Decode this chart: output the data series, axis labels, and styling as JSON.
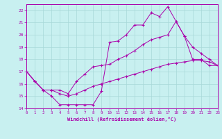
{
  "xlabel": "Windchill (Refroidissement éolien,°C)",
  "bg_color": "#c8f0f0",
  "grid_color": "#a8d8d8",
  "line_color": "#aa00aa",
  "xlim": [
    0,
    23
  ],
  "ylim": [
    14,
    22.5
  ],
  "xticks": [
    0,
    1,
    2,
    3,
    4,
    5,
    6,
    7,
    8,
    9,
    10,
    11,
    12,
    13,
    14,
    15,
    16,
    17,
    18,
    19,
    20,
    21,
    22,
    23
  ],
  "yticks": [
    14,
    15,
    16,
    17,
    18,
    19,
    20,
    21,
    22
  ],
  "line1_x": [
    0,
    1,
    2,
    3,
    4,
    5,
    6,
    7,
    8,
    9,
    10,
    11,
    12,
    13,
    14,
    15,
    16,
    17,
    18,
    19,
    20,
    21,
    22,
    23
  ],
  "line1_y": [
    17.0,
    16.2,
    15.5,
    15.0,
    14.3,
    14.3,
    14.3,
    14.3,
    14.3,
    15.4,
    19.4,
    19.5,
    20.0,
    20.8,
    20.8,
    21.8,
    21.5,
    22.3,
    21.1,
    19.9,
    18.0,
    18.0,
    17.5,
    17.5
  ],
  "line2_x": [
    0,
    1,
    2,
    3,
    4,
    5,
    6,
    7,
    8,
    9,
    10,
    11,
    12,
    13,
    14,
    15,
    16,
    17,
    18,
    19,
    20,
    21,
    22,
    23
  ],
  "line2_y": [
    17.0,
    16.2,
    15.5,
    15.5,
    15.5,
    15.2,
    16.2,
    16.8,
    17.4,
    17.5,
    17.6,
    18.0,
    18.3,
    18.7,
    19.2,
    19.6,
    19.8,
    20.0,
    21.1,
    19.9,
    19.0,
    18.5,
    18.0,
    17.5
  ],
  "line3_x": [
    0,
    1,
    2,
    3,
    4,
    5,
    6,
    7,
    8,
    9,
    10,
    11,
    12,
    13,
    14,
    15,
    16,
    17,
    18,
    19,
    20,
    21,
    22,
    23
  ],
  "line3_y": [
    17.0,
    16.2,
    15.5,
    15.5,
    15.2,
    15.0,
    15.2,
    15.5,
    15.8,
    16.0,
    16.2,
    16.4,
    16.6,
    16.8,
    17.0,
    17.2,
    17.4,
    17.6,
    17.7,
    17.8,
    17.9,
    17.9,
    17.8,
    17.5
  ]
}
